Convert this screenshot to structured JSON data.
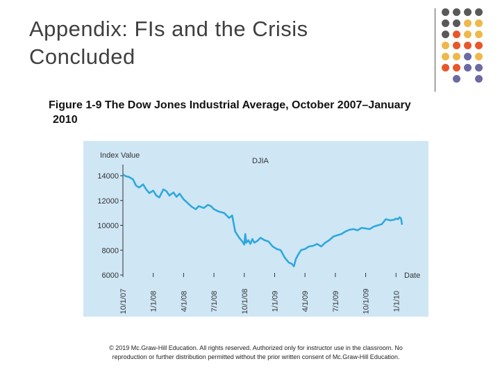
{
  "slide": {
    "title_line1": "Appendix: FIs and the Crisis",
    "title_line2": "Concluded",
    "caption_line1": "Figure 1-9 The Dow Jones Industrial Average, October 2007–January",
    "caption_line2": "2010",
    "footer_line1": "© 2019 Mc.Graw-Hill Education. All rights reserved. Authorized only for instructor use in the classroom. No",
    "footer_line2": "reproduction or further distribution permitted without the prior written consent of Mc.Graw-Hill Education."
  },
  "colors": {
    "chart_bg": "#cfe6f5",
    "series_line": "#2ea8dc",
    "axis": "#333333",
    "dot_dark": "#595959",
    "dot_orange": "#e8572a",
    "dot_yellow": "#efb84a",
    "dot_purple": "#6b6aa5"
  },
  "dots": {
    "rows": [
      [
        "dark",
        "dark",
        "dark",
        "dark"
      ],
      [
        "dark",
        "dark",
        "yellow",
        "yellow"
      ],
      [
        "dark",
        "orange",
        "yellow",
        "yellow"
      ],
      [
        "yellow",
        "orange",
        "orange",
        "orange"
      ],
      [
        "yellow",
        "yellow",
        "purple",
        "yellow"
      ],
      [
        "orange",
        "orange",
        "purple",
        "purple"
      ],
      [
        "",
        "purple",
        "",
        "purple"
      ]
    ]
  },
  "chart_data": {
    "type": "line",
    "title": "DJIA",
    "ylabel": "Index Value",
    "xlabel": "Date",
    "ylim": [
      6000,
      14000
    ],
    "yticks": [
      14000,
      12000,
      10000,
      8000,
      6000
    ],
    "ytick_labels": [
      "14000",
      "12000",
      "10000",
      "8000",
      "6000"
    ],
    "xlim": [
      0,
      27.6
    ],
    "xticks": [
      0,
      3,
      6,
      9,
      12,
      15,
      18,
      21,
      24,
      27
    ],
    "xtick_labels": [
      "10/1/07",
      "1/1/08",
      "4/1/08",
      "7/1/08",
      "10/1/08",
      "1/1/09",
      "4/1/09",
      "7/1/09",
      "10/1/09",
      "1/1/10"
    ],
    "series": [
      {
        "name": "DJIA",
        "x": [
          0,
          0.3,
          0.6,
          1.0,
          1.3,
          1.6,
          2.0,
          2.3,
          2.6,
          3.0,
          3.3,
          3.6,
          4.0,
          4.3,
          4.6,
          5.0,
          5.3,
          5.6,
          6.0,
          6.4,
          6.8,
          7.2,
          7.5,
          8.0,
          8.4,
          8.7,
          9.0,
          9.5,
          10.0,
          10.5,
          10.8,
          11.1,
          11.5,
          11.8,
          12.0,
          12.1,
          12.2,
          12.4,
          12.6,
          12.8,
          13.0,
          13.3,
          13.6,
          14.0,
          14.4,
          14.8,
          15.2,
          15.6,
          16.0,
          16.4,
          16.7,
          16.9,
          17.1,
          17.3,
          17.6,
          18.0,
          18.4,
          18.8,
          19.2,
          19.6,
          20.0,
          20.4,
          20.8,
          21.2,
          21.6,
          22.0,
          22.4,
          22.8,
          23.2,
          23.6,
          24.0,
          24.4,
          24.8,
          25.2,
          25.6,
          26.0,
          26.4,
          26.8,
          27.0,
          27.2,
          27.35,
          27.5,
          27.6
        ],
        "values": [
          14100,
          13950,
          13900,
          13700,
          13200,
          13050,
          13300,
          12900,
          12600,
          12800,
          12400,
          12250,
          12900,
          12750,
          12400,
          12650,
          12300,
          12550,
          12100,
          11800,
          11500,
          11300,
          11550,
          11400,
          11650,
          11550,
          11300,
          11100,
          11000,
          10600,
          10800,
          9500,
          9000,
          8700,
          8450,
          9300,
          8600,
          8800,
          8500,
          8900,
          8600,
          8750,
          9000,
          8800,
          8700,
          8300,
          8100,
          8000,
          7400,
          7000,
          6900,
          6700,
          7300,
          7600,
          8000,
          8100,
          8300,
          8350,
          8500,
          8300,
          8600,
          8800,
          9100,
          9200,
          9300,
          9500,
          9650,
          9700,
          9600,
          9800,
          9750,
          9700,
          9900,
          10000,
          10100,
          10500,
          10400,
          10450,
          10550,
          10500,
          10650,
          10550,
          10050
        ]
      }
    ]
  }
}
